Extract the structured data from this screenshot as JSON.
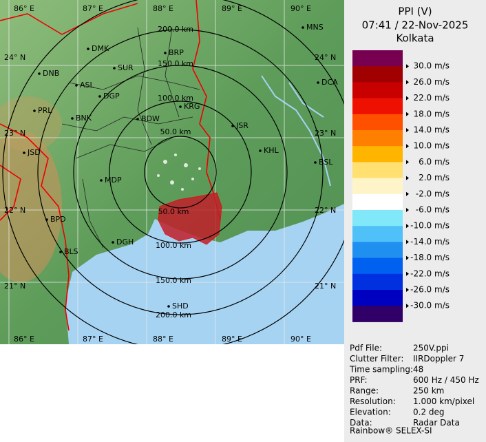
{
  "header": {
    "title": "PPI (V)",
    "time": "07:41 / 22-Nov-2025",
    "site": "Kolkata"
  },
  "legend": {
    "labels": [
      "30.0 m/s",
      "26.0 m/s",
      "22.0 m/s",
      "18.0 m/s",
      "14.0 m/s",
      "10.0 m/s",
      "6.0 m/s",
      "2.0 m/s",
      "-2.0 m/s",
      "-6.0 m/s",
      "-10.0 m/s",
      "-14.0 m/s",
      "-18.0 m/s",
      "-22.0 m/s",
      "-26.0 m/s",
      "-30.0 m/s"
    ],
    "colors": [
      "#780050",
      "#a00000",
      "#c80000",
      "#ee1000",
      "#ff5000",
      "#ff8000",
      "#ffb400",
      "#ffe070",
      "#fff4c8",
      "#ffffff",
      "#80e8f8",
      "#50c0f8",
      "#2090f0",
      "#0060f0",
      "#0030e0",
      "#0000c0",
      "#300068"
    ]
  },
  "info": {
    "rows": [
      [
        "Pdf File:",
        "250V.ppi"
      ],
      [
        "Clutter Filter:",
        "IIRDoppler 7"
      ],
      [
        "Time sampling:",
        "48"
      ],
      [
        "PRF:",
        "600 Hz / 450 Hz"
      ],
      [
        "Range:",
        "250 km"
      ],
      [
        "Resolution:",
        "1.000 km/pixel"
      ],
      [
        "Elevation:",
        "0.2 deg"
      ],
      [
        "Data:",
        "Radar Data"
      ]
    ]
  },
  "footer": "Rainbow® SELEX-SI",
  "map": {
    "lon_labels": [
      "86° E",
      "87° E",
      "88° E",
      "89° E",
      "90° E"
    ],
    "lat_labels": [
      "24° N",
      "23° N",
      "22° N",
      "21° N"
    ],
    "ring_labels_north": [
      "200.0 km",
      "150.0 km",
      "100.0 km",
      "50.0 km"
    ],
    "ring_labels_south": [
      "50.0 km",
      "100.0 km",
      "150.0 km",
      "200.0 km"
    ],
    "cities": [
      "MNS",
      "DMK",
      "BRP",
      "DNB",
      "SUR",
      "ASL",
      "DGP",
      "DCA",
      "PRL",
      "BNK",
      "KRG",
      "BDW",
      "JSR",
      "JSD",
      "KHL",
      "BSL",
      "MDP",
      "BPD",
      "DGH",
      "BLS",
      "SHD"
    ]
  }
}
